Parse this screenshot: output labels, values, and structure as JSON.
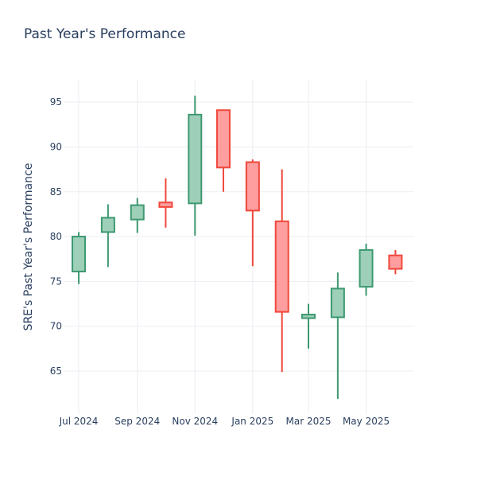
{
  "chart_data": {
    "type": "candlestick",
    "title": "Past Year's Performance",
    "ylabel": "SRE's Past Year's Performance",
    "xlabel": "",
    "ylim": [
      60.2,
      97.5
    ],
    "yticks": [
      65,
      70,
      75,
      80,
      85,
      90,
      95
    ],
    "xlim": [
      "2024-06-15",
      "2025-06-20"
    ],
    "xticks": [
      {
        "date": "2024-07-01",
        "label": "Jul 2024"
      },
      {
        "date": "2024-09-01",
        "label": "Sep 2024"
      },
      {
        "date": "2024-11-01",
        "label": "Nov 2024"
      },
      {
        "date": "2025-01-01",
        "label": "Jan 2025"
      },
      {
        "date": "2025-03-01",
        "label": "Mar 2025"
      },
      {
        "date": "2025-05-01",
        "label": "May 2025"
      }
    ],
    "grid": true,
    "colors": {
      "increasing_line": "#3d9970",
      "increasing_fill": "#9ecfb8",
      "decreasing_line": "#f0473c",
      "decreasing_fill": "#ff9e9e",
      "grid": "#ebedf2",
      "text": "#2a3f5f"
    },
    "candles": [
      {
        "date": "2024-07-01",
        "open": 76.1,
        "high": 80.5,
        "low": 74.7,
        "close": 80.0
      },
      {
        "date": "2024-08-01",
        "open": 80.5,
        "high": 83.6,
        "low": 76.6,
        "close": 82.1
      },
      {
        "date": "2024-09-01",
        "open": 81.9,
        "high": 84.3,
        "low": 80.4,
        "close": 83.5
      },
      {
        "date": "2024-10-01",
        "open": 83.8,
        "high": 86.5,
        "low": 81.0,
        "close": 83.3
      },
      {
        "date": "2024-11-01",
        "open": 83.7,
        "high": 95.7,
        "low": 80.1,
        "close": 93.6
      },
      {
        "date": "2024-12-01",
        "open": 94.1,
        "high": 94.1,
        "low": 85.0,
        "close": 87.7
      },
      {
        "date": "2025-01-01",
        "open": 88.3,
        "high": 88.6,
        "low": 76.7,
        "close": 82.9
      },
      {
        "date": "2025-02-01",
        "open": 81.7,
        "high": 87.5,
        "low": 64.9,
        "close": 71.6
      },
      {
        "date": "2025-03-01",
        "open": 70.9,
        "high": 72.5,
        "low": 67.5,
        "close": 71.3
      },
      {
        "date": "2025-04-01",
        "open": 71.0,
        "high": 76.0,
        "low": 61.9,
        "close": 74.2
      },
      {
        "date": "2025-05-01",
        "open": 74.4,
        "high": 79.2,
        "low": 73.4,
        "close": 78.5
      },
      {
        "date": "2025-06-01",
        "open": 77.9,
        "high": 78.5,
        "low": 75.8,
        "close": 76.4
      }
    ]
  }
}
